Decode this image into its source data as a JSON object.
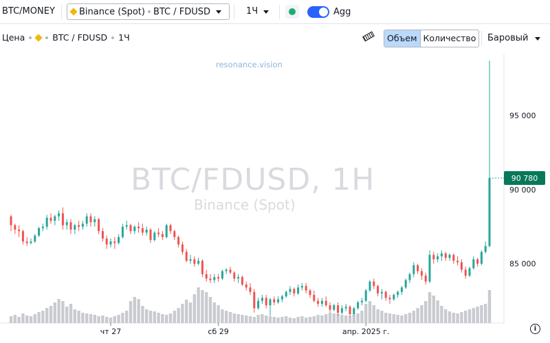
{
  "toolbar": {
    "symbol": "BTC/MONEY",
    "exchange": "Binance (Spot)",
    "pair": "BTC / FDUSD",
    "interval": "1Ч",
    "agg_label": "Agg",
    "agg_enabled": true,
    "live_status_color": "#22ab70"
  },
  "legend": {
    "price_label": "Цена",
    "pair": "BTC / FDUSD",
    "interval": "1Ч"
  },
  "view": {
    "volume_button": "Объем",
    "quantity_button": "Количество",
    "active_mode": "Объем",
    "chart_style": "Баровый"
  },
  "watermark": {
    "url": "resonance.vision",
    "title": "BTC/FDUSD, 1H",
    "subtitle": "Binance (Spot)"
  },
  "chart_data": {
    "type": "candlestick",
    "y_axis_ticks": [
      "95 000",
      "90 000",
      "85 000"
    ],
    "y_tick_values": [
      95000,
      90000,
      85000
    ],
    "ylim": [
      81000,
      98800
    ],
    "x_axis_ticks": [
      {
        "label": "чт 27",
        "index": 25
      },
      {
        "label": "сб 29",
        "index": 52
      },
      {
        "label": "апр. 2025 г.",
        "index": 89
      }
    ],
    "last_price_label": "90 780",
    "last_price": 90780,
    "up_color": "#26a69a",
    "down_color": "#ef5350",
    "volume_color": "#c9cbd0",
    "candles": [
      [
        88200,
        88300,
        87200,
        87600
      ],
      [
        87600,
        87700,
        87000,
        87300
      ],
      [
        87300,
        87600,
        86800,
        87200
      ],
      [
        87200,
        87300,
        86300,
        86500
      ],
      [
        86500,
        86800,
        86200,
        86400
      ],
      [
        86400,
        86700,
        86300,
        86500
      ],
      [
        86500,
        87000,
        86400,
        86900
      ],
      [
        86900,
        87500,
        86800,
        87400
      ],
      [
        87400,
        87700,
        87200,
        87500
      ],
      [
        87500,
        88300,
        87300,
        88100
      ],
      [
        88100,
        88400,
        87700,
        87900
      ],
      [
        87900,
        88300,
        87600,
        88200
      ],
      [
        88200,
        88600,
        87900,
        88400
      ],
      [
        88400,
        88800,
        87300,
        87600
      ],
      [
        87600,
        88000,
        87300,
        87800
      ],
      [
        87800,
        88000,
        87000,
        87300
      ],
      [
        87300,
        87700,
        87000,
        87600
      ],
      [
        87600,
        87900,
        87200,
        87500
      ],
      [
        87500,
        87900,
        87300,
        87700
      ],
      [
        87700,
        88400,
        87500,
        88200
      ],
      [
        88200,
        88400,
        87500,
        87800
      ],
      [
        87800,
        88200,
        87500,
        88000
      ],
      [
        88000,
        88100,
        87000,
        87200
      ],
      [
        87200,
        87400,
        86500,
        86700
      ],
      [
        86700,
        86900,
        86000,
        86300
      ],
      [
        86300,
        86700,
        86100,
        86500
      ],
      [
        86500,
        86800,
        86000,
        86400
      ],
      [
        86400,
        87000,
        86300,
        86800
      ],
      [
        86800,
        87700,
        86700,
        87500
      ],
      [
        87500,
        87900,
        87300,
        87600
      ],
      [
        87600,
        87700,
        87000,
        87200
      ],
      [
        87200,
        87600,
        87000,
        87500
      ],
      [
        87500,
        87800,
        87100,
        87400
      ],
      [
        87400,
        87700,
        86900,
        87100
      ],
      [
        87100,
        87500,
        86900,
        87300
      ],
      [
        87300,
        87400,
        86400,
        86600
      ],
      [
        86600,
        87200,
        86500,
        87100
      ],
      [
        87100,
        87400,
        86800,
        87000
      ],
      [
        87000,
        87200,
        86600,
        86800
      ],
      [
        86800,
        87700,
        86700,
        87600
      ],
      [
        87600,
        87700,
        87000,
        87200
      ],
      [
        87200,
        87300,
        86600,
        86800
      ],
      [
        86800,
        86900,
        86100,
        86300
      ],
      [
        86300,
        86500,
        85600,
        85800
      ],
      [
        85800,
        86000,
        85100,
        85200
      ],
      [
        85200,
        85600,
        85000,
        85300
      ],
      [
        85300,
        85500,
        84800,
        85000
      ],
      [
        85000,
        85400,
        84900,
        85200
      ],
      [
        85200,
        85300,
        84100,
        84300
      ],
      [
        84300,
        84600,
        83800,
        84000
      ],
      [
        84000,
        84300,
        83700,
        83900
      ],
      [
        83900,
        84300,
        83700,
        84100
      ],
      [
        84100,
        84300,
        83800,
        84000
      ],
      [
        84000,
        84600,
        83900,
        84500
      ],
      [
        84500,
        84700,
        84300,
        84600
      ],
      [
        84600,
        84800,
        84300,
        84400
      ],
      [
        84400,
        84500,
        83800,
        84000
      ],
      [
        84000,
        84300,
        83700,
        84100
      ],
      [
        84100,
        84200,
        83500,
        83600
      ],
      [
        83600,
        83800,
        83200,
        83400
      ],
      [
        83400,
        83700,
        82900,
        83100
      ],
      [
        83100,
        83300,
        81700,
        82000
      ],
      [
        82000,
        82700,
        81900,
        82500
      ],
      [
        82500,
        82900,
        82300,
        82700
      ],
      [
        82700,
        82900,
        82000,
        82200
      ],
      [
        82200,
        82700,
        81500,
        82600
      ],
      [
        82600,
        82800,
        82200,
        82400
      ],
      [
        82400,
        82800,
        82300,
        82600
      ],
      [
        82600,
        82900,
        82400,
        82800
      ],
      [
        82800,
        83200,
        82700,
        83100
      ],
      [
        83100,
        83500,
        82900,
        83300
      ],
      [
        83300,
        83400,
        82800,
        83000
      ],
      [
        83000,
        83600,
        82900,
        83400
      ],
      [
        83400,
        83700,
        83200,
        83500
      ],
      [
        83500,
        83700,
        83000,
        83200
      ],
      [
        83200,
        83300,
        82700,
        82900
      ],
      [
        82900,
        83200,
        82400,
        82500
      ],
      [
        82500,
        82700,
        82100,
        82300
      ],
      [
        82300,
        82700,
        82100,
        82500
      ],
      [
        82500,
        82800,
        82100,
        82200
      ],
      [
        82200,
        82400,
        81700,
        81900
      ],
      [
        81900,
        82300,
        81800,
        82200
      ],
      [
        82200,
        82400,
        81500,
        81700
      ],
      [
        81700,
        82200,
        81600,
        82000
      ],
      [
        82000,
        82300,
        81800,
        82100
      ],
      [
        82100,
        82200,
        81400,
        81600
      ],
      [
        81600,
        82100,
        81500,
        82000
      ],
      [
        82000,
        82500,
        81900,
        82400
      ],
      [
        82400,
        82700,
        82200,
        82500
      ],
      [
        82500,
        83300,
        82400,
        83200
      ],
      [
        83200,
        83900,
        83100,
        83800
      ],
      [
        83800,
        84000,
        83300,
        83500
      ],
      [
        83500,
        83600,
        82800,
        83000
      ],
      [
        83000,
        83300,
        82600,
        83100
      ],
      [
        83100,
        83200,
        82500,
        82700
      ],
      [
        82700,
        82900,
        82300,
        82600
      ],
      [
        82600,
        83000,
        82500,
        82900
      ],
      [
        82900,
        83200,
        82700,
        83100
      ],
      [
        83100,
        83500,
        82900,
        83400
      ],
      [
        83400,
        84000,
        83300,
        83900
      ],
      [
        83900,
        84400,
        83700,
        84300
      ],
      [
        84300,
        85100,
        84100,
        84900
      ],
      [
        84900,
        85000,
        84300,
        84500
      ],
      [
        84500,
        84700,
        83900,
        84200
      ],
      [
        84200,
        84400,
        83600,
        83800
      ],
      [
        83800,
        85900,
        83700,
        85600
      ],
      [
        85600,
        85800,
        85000,
        85300
      ],
      [
        85300,
        85700,
        85100,
        85500
      ],
      [
        85500,
        85900,
        85200,
        85700
      ],
      [
        85700,
        85800,
        85200,
        85400
      ],
      [
        85400,
        85700,
        85200,
        85600
      ],
      [
        85600,
        85700,
        85000,
        85200
      ],
      [
        85200,
        85500,
        84900,
        85100
      ],
      [
        85100,
        85300,
        84400,
        84600
      ],
      [
        84600,
        84800,
        84000,
        84200
      ],
      [
        84200,
        84800,
        84100,
        84700
      ],
      [
        84700,
        85500,
        84600,
        85300
      ],
      [
        85300,
        85400,
        84800,
        85000
      ],
      [
        85000,
        85900,
        84900,
        85800
      ],
      [
        85800,
        86500,
        85700,
        86200
      ],
      [
        86200,
        98700,
        86100,
        90780
      ]
    ],
    "volumes": [
      0.1,
      0.12,
      0.09,
      0.14,
      0.11,
      0.1,
      0.13,
      0.16,
      0.18,
      0.22,
      0.25,
      0.3,
      0.35,
      0.32,
      0.24,
      0.28,
      0.2,
      0.18,
      0.15,
      0.14,
      0.13,
      0.12,
      0.1,
      0.11,
      0.09,
      0.08,
      0.1,
      0.12,
      0.15,
      0.18,
      0.32,
      0.38,
      0.35,
      0.25,
      0.2,
      0.18,
      0.17,
      0.15,
      0.13,
      0.12,
      0.14,
      0.18,
      0.22,
      0.28,
      0.34,
      0.3,
      0.42,
      0.52,
      0.48,
      0.45,
      0.38,
      0.3,
      0.26,
      0.2,
      0.18,
      0.16,
      0.14,
      0.13,
      0.12,
      0.11,
      0.1,
      0.09,
      0.12,
      0.13,
      0.11,
      0.1,
      0.09,
      0.08,
      0.09,
      0.1,
      0.08,
      0.07,
      0.09,
      0.1,
      0.08,
      0.09,
      0.1,
      0.12,
      0.11,
      0.13,
      0.15,
      0.14,
      0.13,
      0.12,
      0.11,
      0.1,
      0.12,
      0.14,
      0.18,
      0.28,
      0.32,
      0.26,
      0.2,
      0.18,
      0.15,
      0.14,
      0.13,
      0.12,
      0.11,
      0.13,
      0.15,
      0.18,
      0.22,
      0.26,
      0.32,
      0.45,
      0.4,
      0.33,
      0.25,
      0.2,
      0.17,
      0.15,
      0.14,
      0.16,
      0.18,
      0.2,
      0.22,
      0.24,
      0.26,
      0.28,
      0.48
    ]
  }
}
